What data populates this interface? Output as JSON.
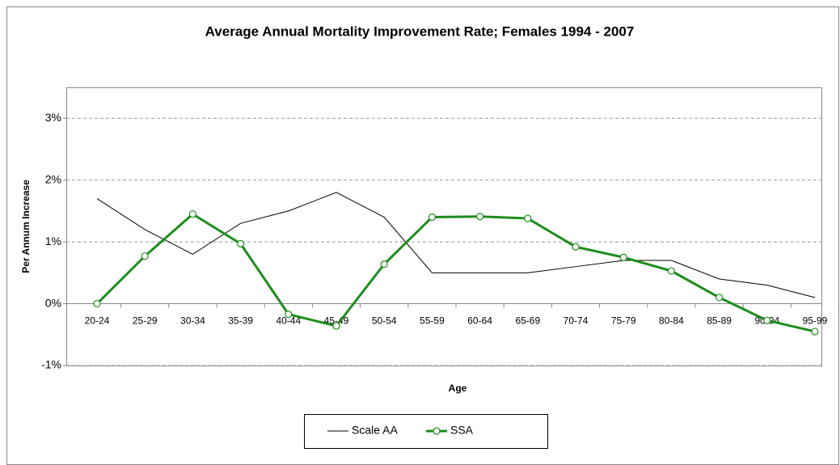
{
  "chart_data": {
    "type": "line",
    "title": "Average Annual Mortality Improvement Rate; Females 1994 - 2007",
    "x_label": "Age",
    "y_label": "Per Annum Increase",
    "categories": [
      "20-24",
      "25-29",
      "30-34",
      "35-39",
      "40-44",
      "45-49",
      "50-54",
      "55-59",
      "60-64",
      "65-69",
      "70-74",
      "75-79",
      "80-84",
      "85-89",
      "90-94",
      "95-99"
    ],
    "series": [
      {
        "name": "Scale AA",
        "color": "#000000",
        "values": [
          1.7,
          1.2,
          0.8,
          1.3,
          1.5,
          1.8,
          1.4,
          0.5,
          0.5,
          0.5,
          0.6,
          0.7,
          0.7,
          0.4,
          0.3,
          0.1
        ]
      },
      {
        "name": "SSA",
        "color": "#1e8c1e",
        "values": [
          0,
          0.77,
          1.45,
          0.97,
          -0.17,
          -0.36,
          0.64,
          1.4,
          1.41,
          1.38,
          0.92,
          0.75,
          0.53,
          0.1,
          -0.27,
          -0.45
        ],
        "markers": true
      }
    ],
    "ylim": [
      -1,
      3.5
    ],
    "yticks": [
      {
        "value": -1,
        "label": "-1%"
      },
      {
        "value": 0,
        "label": "0%"
      },
      {
        "value": 1,
        "label": "1%"
      },
      {
        "value": 2,
        "label": "2%"
      },
      {
        "value": 3,
        "label": "3%"
      }
    ],
    "grid": true,
    "legend": "bottom"
  }
}
